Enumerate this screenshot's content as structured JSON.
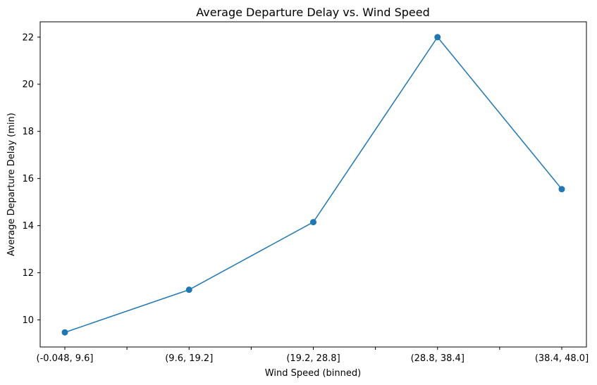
{
  "chart_data": {
    "type": "line",
    "title": "Average Departure Delay vs. Wind Speed",
    "xlabel": "Wind Speed (binned)",
    "ylabel": "Average Departure Delay (min)",
    "categories": [
      "(-0.048, 9.6]",
      "(9.6, 19.2]",
      "(19.2, 28.8]",
      "(28.8, 38.4]",
      "(38.4, 48.0]"
    ],
    "series": [
      {
        "values": [
          9.47,
          11.28,
          14.15,
          22.0,
          15.55
        ],
        "color": "#1f77b4",
        "marker": "circle"
      }
    ],
    "ylim": [
      8.85,
      22.65
    ],
    "yticks": [
      10,
      12,
      14,
      16,
      18,
      20,
      22
    ],
    "grid": false,
    "legend": "none"
  }
}
